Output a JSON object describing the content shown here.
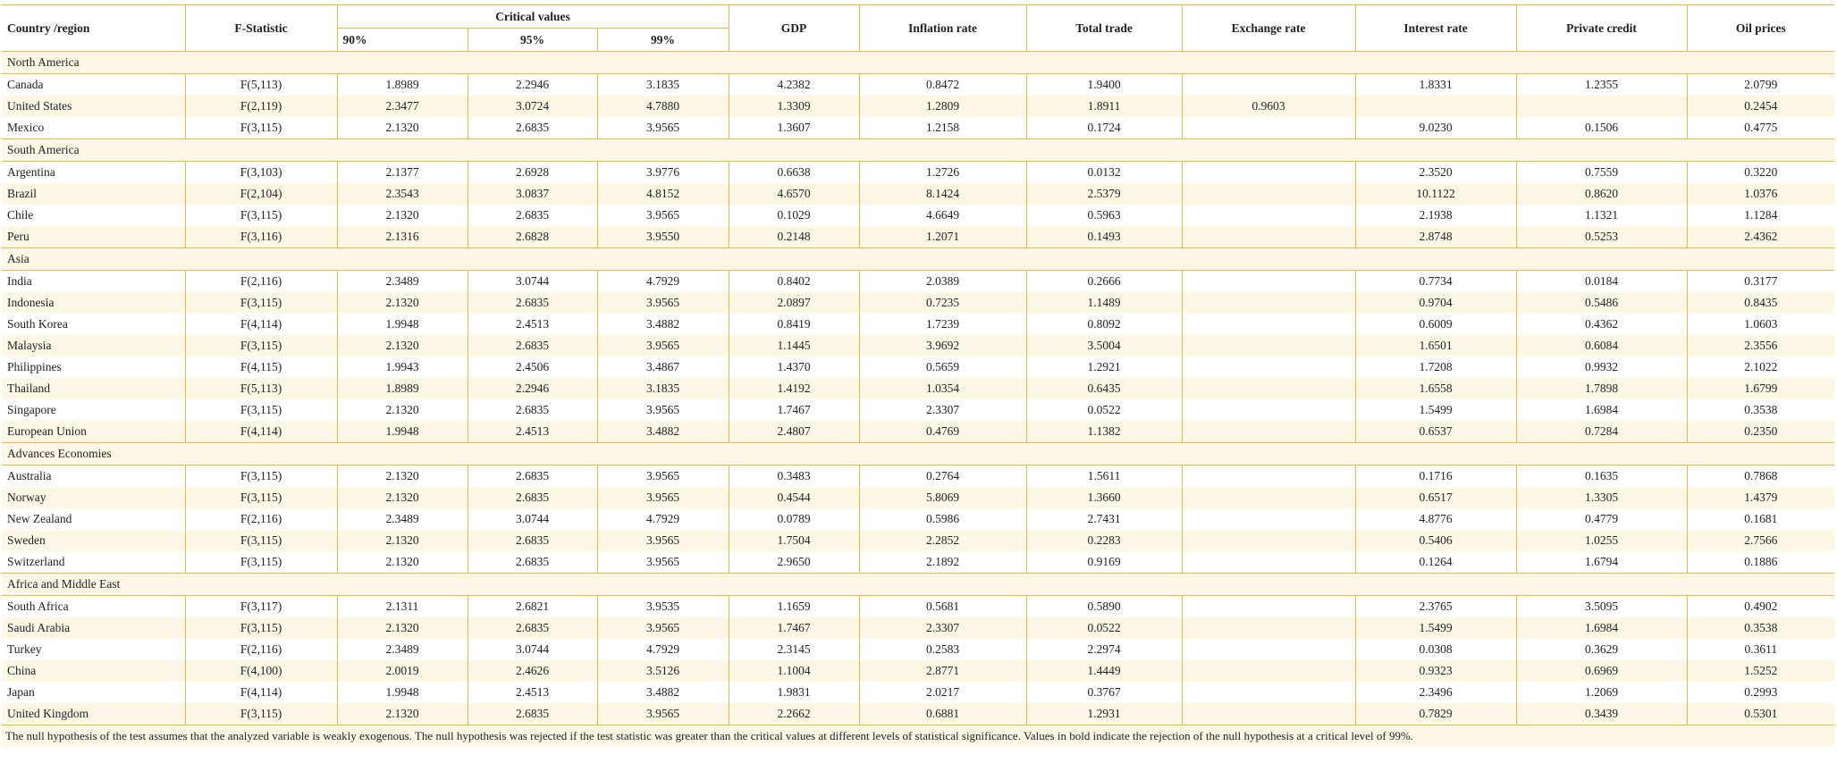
{
  "header": {
    "country": "Country /region",
    "f_statistic": "F-Statistic",
    "critical_values": "Critical values",
    "levels": [
      "90%",
      "95%",
      "99%"
    ],
    "variables": [
      "GDP",
      "Inflation rate",
      "Total trade",
      "Exchange rate",
      "Interest rate",
      "Private credit",
      "Oil prices"
    ]
  },
  "groups": [
    {
      "name": "North America",
      "rows": [
        [
          "Canada",
          "F(5,113)",
          "1.8989",
          "2.2946",
          "3.1835",
          "4.2382",
          "0.8472",
          "1.9400",
          null,
          "1.8331",
          "1.2355",
          "2.0799"
        ],
        [
          "United States",
          "F(2,119)",
          "2.3477",
          "3.0724",
          "4.7880",
          "1.3309",
          "1.2809",
          "1.8911",
          "0.9603",
          null,
          null,
          "0.2454"
        ],
        [
          "Mexico",
          "F(3,115)",
          "2.1320",
          "2.6835",
          "3.9565",
          "1.3607",
          "1.2158",
          "0.1724",
          null,
          "9.0230",
          "0.1506",
          "0.4775"
        ]
      ]
    },
    {
      "name": "South America",
      "rows": [
        [
          "Argentina",
          "F(3,103)",
          "2.1377",
          "2.6928",
          "3.9776",
          "0.6638",
          "1.2726",
          "0.0132",
          null,
          "2.3520",
          "0.7559",
          "0.3220"
        ],
        [
          "Brazil",
          "F(2,104)",
          "2.3543",
          "3.0837",
          "4.8152",
          "4.6570",
          "8.1424",
          "2.5379",
          null,
          "10.1122",
          "0.8620",
          "1.0376"
        ],
        [
          "Chile",
          "F(3,115)",
          "2.1320",
          "2.6835",
          "3.9565",
          "0.1029",
          "4.6649",
          "0.5963",
          null,
          "2.1938",
          "1.1321",
          "1.1284"
        ],
        [
          "Peru",
          "F(3,116)",
          "2.1316",
          "2.6828",
          "3.9550",
          "0.2148",
          "1.2071",
          "0.1493",
          null,
          "2.8748",
          "0.5253",
          "2.4362"
        ]
      ]
    },
    {
      "name": "Asia",
      "rows": [
        [
          "India",
          "F(2,116)",
          "2.3489",
          "3.0744",
          "4.7929",
          "0.8402",
          "2.0389",
          "0.2666",
          null,
          "0.7734",
          "0.0184",
          "0.3177"
        ],
        [
          "Indonesia",
          "F(3,115)",
          "2.1320",
          "2.6835",
          "3.9565",
          "2.0897",
          "0.7235",
          "1.1489",
          null,
          "0.9704",
          "0.5486",
          "0.8435"
        ],
        [
          "South Korea",
          "F(4,114)",
          "1.9948",
          "2.4513",
          "3.4882",
          "0.8419",
          "1.7239",
          "0.8092",
          null,
          "0.6009",
          "0.4362",
          "1.0603"
        ],
        [
          "Malaysia",
          "F(3,115)",
          "2.1320",
          "2.6835",
          "3.9565",
          "1.1445",
          "3.9692",
          "3.5004",
          null,
          "1.6501",
          "0.6084",
          "2.3556"
        ],
        [
          "Philippines",
          "F(4,115)",
          "1.9943",
          "2.4506",
          "3.4867",
          "1.4370",
          "0.5659",
          "1.2921",
          null,
          "1.7208",
          "0.9932",
          "2.1022"
        ],
        [
          "Thailand",
          "F(5,113)",
          "1.8989",
          "2.2946",
          "3.1835",
          "1.4192",
          "1.0354",
          "0.6435",
          null,
          "1.6558",
          "1.7898",
          "1.6799"
        ],
        [
          "Singapore",
          "F(3,115)",
          "2.1320",
          "2.6835",
          "3.9565",
          "1.7467",
          "2.3307",
          "0.0522",
          null,
          "1.5499",
          "1.6984",
          "0.3538"
        ],
        [
          "European Union",
          "F(4,114)",
          "1.9948",
          "2.4513",
          "3.4882",
          "2.4807",
          "0.4769",
          "1.1382",
          null,
          "0.6537",
          "0.7284",
          "0.2350"
        ]
      ]
    },
    {
      "name": "Advances Economies",
      "rows": [
        [
          "Australia",
          "F(3,115)",
          "2.1320",
          "2.6835",
          "3.9565",
          "0.3483",
          "0.2764",
          "1.5611",
          null,
          "0.1716",
          "0.1635",
          "0.7868"
        ],
        [
          "Norway",
          "F(3,115)",
          "2.1320",
          "2.6835",
          "3.9565",
          "0.4544",
          "5.8069",
          "1.3660",
          null,
          "0.6517",
          "1.3305",
          "1.4379"
        ],
        [
          "New Zealand",
          "F(2,116)",
          "2.3489",
          "3.0744",
          "4.7929",
          "0.0789",
          "0.5986",
          "2.7431",
          null,
          "4.8776",
          "0.4779",
          "0.1681"
        ],
        [
          "Sweden",
          "F(3,115)",
          "2.1320",
          "2.6835",
          "3.9565",
          "1.7504",
          "2.2852",
          "0.2283",
          null,
          "0.5406",
          "1.0255",
          "2.7566"
        ],
        [
          "Switzerland",
          "F(3,115)",
          "2.1320",
          "2.6835",
          "3.9565",
          "2.9650",
          "2.1892",
          "0.9169",
          null,
          "0.1264",
          "1.6794",
          "0.1886"
        ]
      ]
    },
    {
      "name": "Africa and Middle East",
      "rows": [
        [
          "South Africa",
          "F(3,117)",
          "2.1311",
          "2.6821",
          "3.9535",
          "1.1659",
          "0.5681",
          "0.5890",
          null,
          "2.3765",
          "3.5095",
          "0.4902"
        ],
        [
          "Saudi Arabia",
          "F(3,115)",
          "2.1320",
          "2.6835",
          "3.9565",
          "1.7467",
          "2.3307",
          "0.0522",
          null,
          "1.5499",
          "1.6984",
          "0.3538"
        ],
        [
          "Turkey",
          "F(2,116)",
          "2.3489",
          "3.0744",
          "4.7929",
          "2.3145",
          "0.2583",
          "2.2974",
          null,
          "0.0308",
          "0.3629",
          "0.3611"
        ],
        [
          "China",
          "F(4,100)",
          "2.0019",
          "2.4626",
          "3.5126",
          "1.1004",
          "2.8771",
          "1.4449",
          null,
          "0.9323",
          "0.6969",
          "1.5252"
        ],
        [
          "Japan",
          "F(4,114)",
          "1.9948",
          "2.4513",
          "3.4882",
          "1.9831",
          "2.0217",
          "0.3767",
          null,
          "2.3496",
          "1.2069",
          "0.2993"
        ],
        [
          "United Kingdom",
          "F(3,115)",
          "2.1320",
          "2.6835",
          "3.9565",
          "2.2662",
          "0.6881",
          "1.2931",
          null,
          "0.7829",
          "0.3439",
          "0.5301"
        ]
      ]
    }
  ],
  "footnote": "The null hypothesis of the test assumes that the analyzed variable is weakly exogenous. The null hypothesis was rejected if the test statistic was greater than the critical values at different levels of statistical significance. Values in bold indicate the rejection of the null hypothesis at a critical level of 99%."
}
